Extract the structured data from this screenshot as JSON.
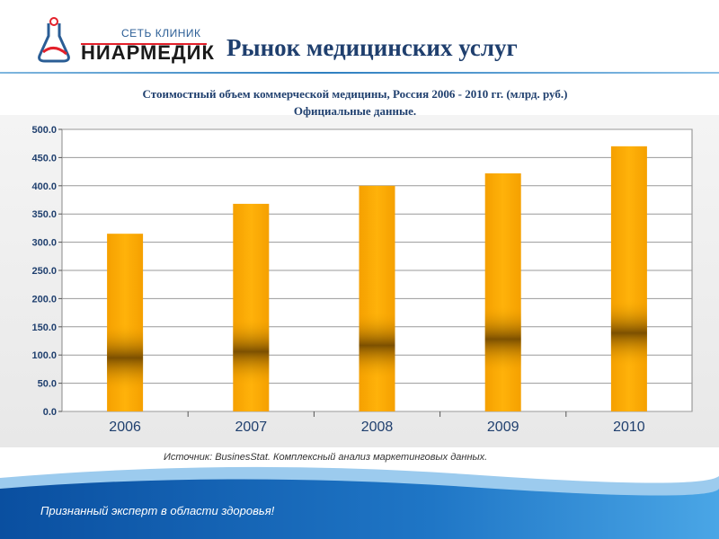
{
  "logo": {
    "network": "СЕТЬ КЛИНИК",
    "brand": "НИАРМЕДИК"
  },
  "page_title": "Рынок медицинских услуг",
  "chart_title": "Стоимостный объем коммерческой медицины, Россия 2006 - 2010 гг. (млрд. руб.)",
  "chart_subtitle": "Официальные данные.",
  "source": "Источник: BusinesStat. Комплексный анализ маркетинговых данных.",
  "slogan": "Признанный эксперт в области здоровья!",
  "colors": {
    "bar": "#fcab00",
    "band": "#6e4600",
    "title": "#1f3f6e"
  },
  "chart_data": {
    "type": "bar",
    "title": "Стоимостный объем коммерческой медицины, Россия 2006 - 2010 гг. (млрд. руб.)",
    "subtitle": "Официальные данные.",
    "categories": [
      "2006",
      "2007",
      "2008",
      "2009",
      "2010"
    ],
    "values": [
      315,
      368,
      400,
      422,
      470
    ],
    "ylim": [
      0,
      500
    ],
    "yticks": [
      "0.0",
      "50.0",
      "100.0",
      "150.0",
      "200.0",
      "250.0",
      "300.0",
      "350.0",
      "400.0",
      "450.0",
      "500.0"
    ],
    "xlabel": "",
    "ylabel": "",
    "grid": true,
    "legend": false
  }
}
